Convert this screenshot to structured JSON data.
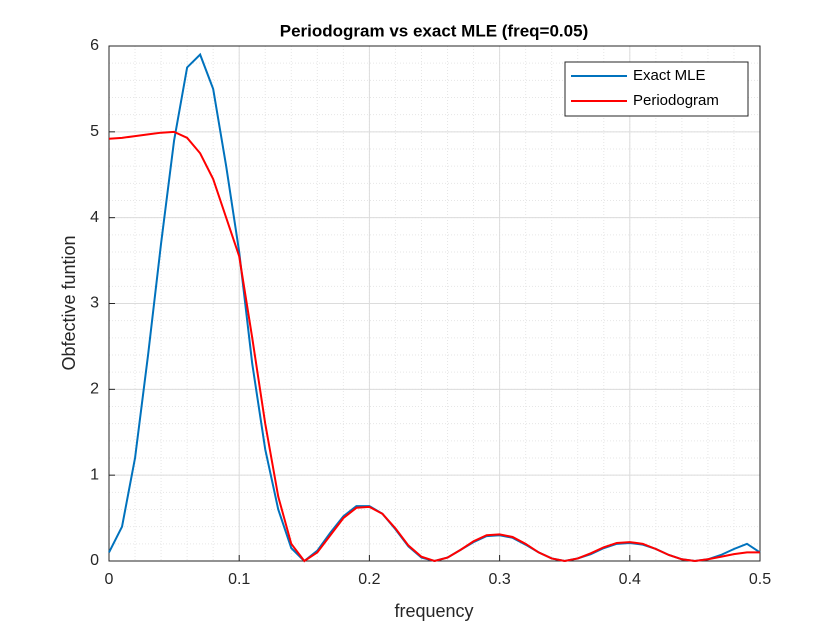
{
  "chart_data": {
    "type": "line",
    "title": "Periodogram vs exact MLE (freq=0.05)",
    "x_label": "frequency",
    "y_label": "Obfective funtion",
    "x": [
      0,
      0.01,
      0.02,
      0.03,
      0.04,
      0.05,
      0.06,
      0.07,
      0.08,
      0.09,
      0.1,
      0.11,
      0.12,
      0.13,
      0.14,
      0.15,
      0.16,
      0.17,
      0.18,
      0.19,
      0.2,
      0.21,
      0.22,
      0.23,
      0.24,
      0.25,
      0.26,
      0.27,
      0.28,
      0.29,
      0.3,
      0.31,
      0.32,
      0.33,
      0.34,
      0.35,
      0.36,
      0.37,
      0.38,
      0.39,
      0.4,
      0.41,
      0.42,
      0.43,
      0.44,
      0.45,
      0.46,
      0.47,
      0.48,
      0.49,
      0.5
    ],
    "series": [
      {
        "name": "Exact MLE",
        "color": "#0072bd",
        "values": [
          0.1,
          0.4,
          1.2,
          2.4,
          3.7,
          4.9,
          5.75,
          5.9,
          5.5,
          4.6,
          3.6,
          2.3,
          1.3,
          0.6,
          0.15,
          0,
          0.12,
          0.33,
          0.52,
          0.64,
          0.64,
          0.55,
          0.37,
          0.17,
          0.04,
          0,
          0.04,
          0.13,
          0.22,
          0.29,
          0.3,
          0.27,
          0.19,
          0.1,
          0.03,
          0,
          0.03,
          0.08,
          0.15,
          0.2,
          0.21,
          0.19,
          0.14,
          0.07,
          0.02,
          0,
          0.02,
          0.07,
          0.14,
          0.2,
          0.1
        ]
      },
      {
        "name": "Periodogram",
        "color": "#ff0000",
        "values": [
          4.92,
          4.93,
          4.95,
          4.97,
          4.99,
          5.0,
          4.93,
          4.75,
          4.45,
          4.0,
          3.55,
          2.6,
          1.6,
          0.75,
          0.2,
          0,
          0.1,
          0.3,
          0.5,
          0.62,
          0.63,
          0.55,
          0.38,
          0.18,
          0.05,
          0,
          0.04,
          0.13,
          0.23,
          0.3,
          0.31,
          0.28,
          0.2,
          0.1,
          0.03,
          0,
          0.03,
          0.09,
          0.16,
          0.21,
          0.22,
          0.2,
          0.14,
          0.07,
          0.02,
          0,
          0.02,
          0.05,
          0.08,
          0.1,
          0.1
        ]
      }
    ],
    "xlim": [
      0,
      0.5
    ],
    "xticks": [
      0,
      0.1,
      0.2,
      0.3,
      0.4,
      0.5
    ],
    "ylim": [
      0,
      6
    ],
    "yticks": [
      0,
      1,
      2,
      3,
      4,
      5,
      6
    ],
    "grid": true,
    "minor_grid": true,
    "legend": "upper right"
  }
}
